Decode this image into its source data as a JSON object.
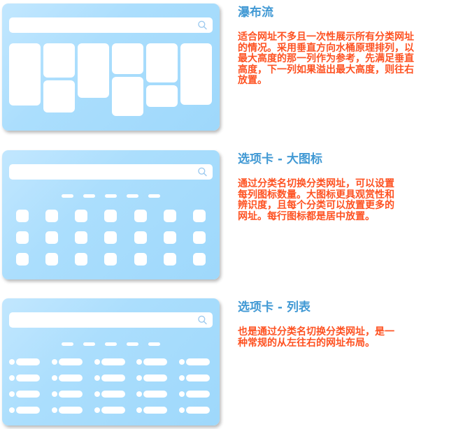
{
  "page": {
    "background_color": "#ffffff"
  },
  "colors": {
    "card_gradient_top_left": "#c2e7fe",
    "card_gradient_bottom_right": "#9ed8fb",
    "mock_shape": "#ffffff",
    "search_icon": "#9dcaef",
    "section_title": "#4199d4",
    "section_body": "#fe5222"
  },
  "sections": [
    {
      "title": "瀑布流",
      "description": "适合网址不多且一次性展示所有分类网址\n的情况。采用垂直方向水桶原理排列，以\n最大高度的那一列作为参考，先满足垂直\n高度，下一列如果溢出最大高度，则往右\n放置。",
      "preview": {
        "type": "waterfall",
        "has_search_bar": true,
        "tab_count": 0,
        "columns": [
          [
            89
          ],
          [
            49,
            46
          ],
          [
            78
          ],
          [
            44,
            56
          ],
          [
            56,
            31
          ],
          [
            88
          ]
        ]
      }
    },
    {
      "title": "选项卡 - 大图标",
      "description": "通过分类名切换分类网址，可以设置\n每列图标数量。大图标更具观赏性和\n辨识度，且每个分类可以放置更多的\n网址。每行图标都是居中放置。",
      "preview": {
        "type": "icon-grid",
        "has_search_bar": true,
        "tab_count": 5,
        "rows": 3,
        "cols": 7
      }
    },
    {
      "title": "选项卡 - 列表",
      "description": "也是通过分类名切换分类网址，是一\n种常规的从左往右的网址布局。",
      "preview": {
        "type": "list",
        "has_search_bar": true,
        "tab_count": 5,
        "rows": 4,
        "cols": 5
      }
    }
  ]
}
